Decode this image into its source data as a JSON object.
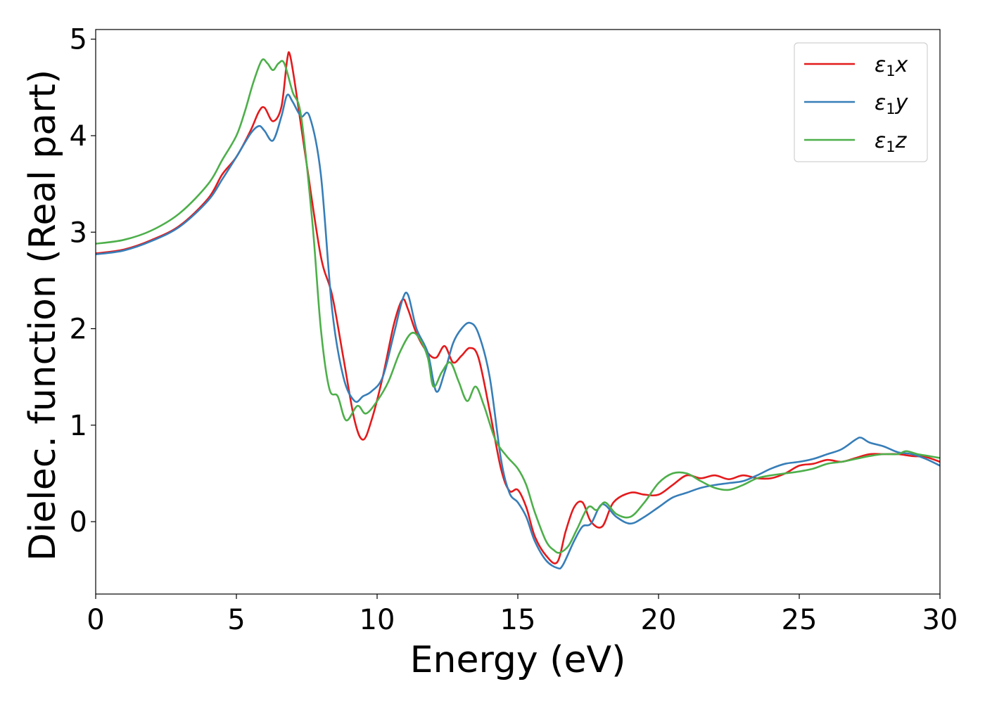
{
  "chart_data": {
    "type": "line",
    "title": "",
    "xlabel": "Energy (eV)",
    "ylabel": "Dielec. function (Real part)",
    "xlim": [
      0,
      30
    ],
    "ylim": [
      -0.75,
      5.1
    ],
    "xticks": [
      0,
      5,
      10,
      15,
      20,
      25,
      30
    ],
    "yticks": [
      0,
      1,
      2,
      3,
      4,
      5
    ],
    "legend_position": "top-right",
    "grid": false,
    "series": [
      {
        "name": "ε₁x",
        "label_base": "ε",
        "label_sub": "1",
        "label_tail": "x",
        "color": "#e41a1c",
        "x": [
          0,
          1,
          2,
          3,
          4,
          4.5,
          5,
          5.5,
          5.8,
          6,
          6.3,
          6.6,
          6.8,
          6.9,
          7.1,
          7.5,
          8,
          8.4,
          8.8,
          9.2,
          9.5,
          9.8,
          10.2,
          10.6,
          10.9,
          11.1,
          11.4,
          11.8,
          12.1,
          12.4,
          12.7,
          13,
          13.3,
          13.6,
          14,
          14.4,
          14.7,
          15,
          15.3,
          15.6,
          16,
          16.4,
          16.7,
          17,
          17.3,
          17.6,
          18,
          18.4,
          19,
          19.5,
          20,
          20.5,
          21,
          21.5,
          22,
          22.5,
          23,
          23.5,
          24,
          24.5,
          25,
          25.5,
          26,
          26.5,
          27,
          27.5,
          28,
          28.5,
          29,
          29.5,
          30
        ],
        "y": [
          2.78,
          2.82,
          2.92,
          3.07,
          3.35,
          3.6,
          3.78,
          4.05,
          4.25,
          4.29,
          4.15,
          4.3,
          4.78,
          4.84,
          4.5,
          3.7,
          2.75,
          2.35,
          1.7,
          1.05,
          0.85,
          1.05,
          1.5,
          2.05,
          2.3,
          2.2,
          1.95,
          1.75,
          1.7,
          1.82,
          1.65,
          1.72,
          1.8,
          1.7,
          1.15,
          0.55,
          0.32,
          0.33,
          0.15,
          -0.15,
          -0.35,
          -0.42,
          -0.1,
          0.15,
          0.2,
          0.0,
          -0.05,
          0.2,
          0.3,
          0.28,
          0.28,
          0.38,
          0.48,
          0.45,
          0.48,
          0.44,
          0.48,
          0.45,
          0.45,
          0.5,
          0.58,
          0.6,
          0.64,
          0.62,
          0.66,
          0.7,
          0.7,
          0.7,
          0.68,
          0.67,
          0.62
        ]
      },
      {
        "name": "ε₁y",
        "label_base": "ε",
        "label_sub": "1",
        "label_tail": "y",
        "color": "#377eb8",
        "x": [
          0,
          1,
          2,
          3,
          4,
          4.5,
          5,
          5.5,
          5.8,
          6,
          6.3,
          6.6,
          6.8,
          7,
          7.3,
          7.6,
          8,
          8.4,
          8.8,
          9.2,
          9.5,
          9.8,
          10.2,
          10.6,
          10.9,
          11.1,
          11.4,
          11.8,
          12.1,
          12.4,
          12.7,
          13,
          13.3,
          13.6,
          14,
          14.4,
          14.7,
          15,
          15.3,
          15.6,
          16,
          16.4,
          16.6,
          17,
          17.3,
          17.6,
          18,
          18.5,
          19,
          19.5,
          20,
          20.5,
          21,
          21.5,
          22,
          22.5,
          23,
          23.5,
          24,
          24.5,
          25,
          25.5,
          26,
          26.5,
          27,
          27.2,
          27.5,
          28,
          28.5,
          29,
          29.5,
          30
        ],
        "y": [
          2.77,
          2.81,
          2.91,
          3.06,
          3.33,
          3.55,
          3.78,
          4.02,
          4.1,
          4.05,
          3.95,
          4.2,
          4.42,
          4.35,
          4.2,
          4.2,
          3.6,
          2.2,
          1.5,
          1.25,
          1.3,
          1.35,
          1.5,
          1.95,
          2.3,
          2.35,
          2.0,
          1.75,
          1.35,
          1.55,
          1.85,
          2.0,
          2.06,
          1.95,
          1.5,
          0.65,
          0.3,
          0.2,
          0.05,
          -0.2,
          -0.4,
          -0.48,
          -0.45,
          -0.2,
          -0.05,
          -0.02,
          0.18,
          0.05,
          -0.02,
          0.05,
          0.15,
          0.25,
          0.3,
          0.35,
          0.38,
          0.4,
          0.42,
          0.48,
          0.55,
          0.6,
          0.62,
          0.65,
          0.7,
          0.75,
          0.85,
          0.87,
          0.82,
          0.78,
          0.72,
          0.7,
          0.65,
          0.58
        ]
      },
      {
        "name": "ε₁z",
        "label_base": "ε",
        "label_sub": "1",
        "label_tail": "z",
        "color": "#4daf4a",
        "x": [
          0,
          1,
          2,
          3,
          4,
          4.5,
          5,
          5.3,
          5.6,
          5.9,
          6.1,
          6.3,
          6.5,
          6.7,
          7,
          7.3,
          7.7,
          8,
          8.3,
          8.6,
          8.9,
          9.3,
          9.6,
          10,
          10.4,
          10.8,
          11.2,
          11.5,
          11.8,
          12,
          12.3,
          12.6,
          12.9,
          13.2,
          13.5,
          13.8,
          14.2,
          14.6,
          15,
          15.3,
          15.6,
          16,
          16.3,
          16.5,
          16.8,
          17.1,
          17.5,
          17.8,
          18.1,
          18.5,
          19,
          19.5,
          20,
          20.5,
          21,
          21.5,
          22,
          22.5,
          23,
          23.5,
          24,
          24.5,
          25,
          25.5,
          26,
          26.5,
          27,
          27.5,
          28,
          28.5,
          28.8,
          29.2,
          29.6,
          30
        ],
        "y": [
          2.88,
          2.92,
          3.02,
          3.2,
          3.5,
          3.75,
          4.0,
          4.25,
          4.55,
          4.78,
          4.75,
          4.68,
          4.75,
          4.75,
          4.45,
          4.2,
          3.1,
          2.0,
          1.38,
          1.3,
          1.05,
          1.2,
          1.12,
          1.25,
          1.45,
          1.75,
          1.95,
          1.9,
          1.7,
          1.4,
          1.55,
          1.65,
          1.45,
          1.25,
          1.4,
          1.2,
          0.85,
          0.68,
          0.55,
          0.38,
          0.1,
          -0.2,
          -0.3,
          -0.32,
          -0.25,
          -0.08,
          0.15,
          0.12,
          0.2,
          0.08,
          0.05,
          0.2,
          0.4,
          0.5,
          0.5,
          0.42,
          0.35,
          0.33,
          0.38,
          0.45,
          0.48,
          0.5,
          0.52,
          0.55,
          0.6,
          0.62,
          0.65,
          0.68,
          0.7,
          0.7,
          0.73,
          0.7,
          0.68,
          0.66
        ]
      }
    ]
  }
}
